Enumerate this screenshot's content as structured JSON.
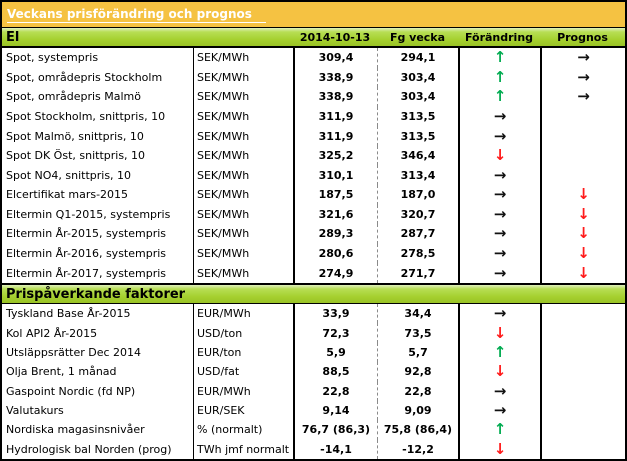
{
  "title": "Veckans prisförändring och prognos",
  "columns": {
    "current": "2014-10-13",
    "previous": "Fg vecka",
    "change": "Förändring",
    "prognosis": "Prognos"
  },
  "icons": {
    "up": "↑",
    "down": "↓",
    "flat": "→"
  },
  "colors": {
    "up": "#00ab50",
    "down": "#ff1a1a",
    "flat": "#111111",
    "title_bg": "#f5c242",
    "section_green": "#a5d02f"
  },
  "sections": [
    {
      "header": "El",
      "rows": [
        {
          "name": "Spot, systempris",
          "unit": "SEK/MWh",
          "current": "309,4",
          "previous": "294,1",
          "change": "up",
          "prognosis": "flat"
        },
        {
          "name": "Spot, områdepris Stockholm",
          "unit": "SEK/MWh",
          "current": "338,9",
          "previous": "303,4",
          "change": "up",
          "prognosis": "flat"
        },
        {
          "name": "Spot, områdepris Malmö",
          "unit": "SEK/MWh",
          "current": "338,9",
          "previous": "303,4",
          "change": "up",
          "prognosis": "flat"
        },
        {
          "name": "Spot Stockholm, snittpris,  10",
          "unit": "SEK/MWh",
          "current": "311,9",
          "previous": "313,5",
          "change": "flat",
          "prognosis": ""
        },
        {
          "name": "Spot Malmö, snittpris,  10",
          "unit": "SEK/MWh",
          "current": "311,9",
          "previous": "313,5",
          "change": "flat",
          "prognosis": ""
        },
        {
          "name": "Spot DK Öst, snittpris,  10",
          "unit": "SEK/MWh",
          "current": "325,2",
          "previous": "346,4",
          "change": "down",
          "prognosis": ""
        },
        {
          "name": "Spot NO4, snittpris,  10",
          "unit": "SEK/MWh",
          "current": "310,1",
          "previous": "313,4",
          "change": "flat",
          "prognosis": ""
        },
        {
          "name": "Elcertifikat mars-2015",
          "unit": "SEK/MWh",
          "current": "187,5",
          "previous": "187,0",
          "change": "flat",
          "prognosis": "down"
        },
        {
          "name": "Eltermin Q1-2015, systempris",
          "unit": "SEK/MWh",
          "current": "321,6",
          "previous": "320,7",
          "change": "flat",
          "prognosis": "down"
        },
        {
          "name": "Eltermin År-2015, systempris",
          "unit": "SEK/MWh",
          "current": "289,3",
          "previous": "287,7",
          "change": "flat",
          "prognosis": "down"
        },
        {
          "name": "Eltermin År-2016, systempris",
          "unit": "SEK/MWh",
          "current": "280,6",
          "previous": "278,5",
          "change": "flat",
          "prognosis": "down"
        },
        {
          "name": "Eltermin År-2017, systempris",
          "unit": "SEK/MWh",
          "current": "274,9",
          "previous": "271,7",
          "change": "flat",
          "prognosis": "down"
        }
      ]
    },
    {
      "header": "Prispåverkande faktorer",
      "rows": [
        {
          "name": "Tyskland Base År-2015",
          "unit": "EUR/MWh",
          "current": "33,9",
          "previous": "34,4",
          "change": "flat",
          "prognosis": ""
        },
        {
          "name": "Kol API2 År-2015",
          "unit": "USD/ton",
          "current": "72,3",
          "previous": "73,5",
          "change": "down",
          "prognosis": ""
        },
        {
          "name": "Utsläppsrätter Dec 2014",
          "unit": "EUR/ton",
          "current": "5,9",
          "previous": "5,7",
          "change": "up",
          "prognosis": ""
        },
        {
          "name": "Olja Brent, 1 månad",
          "unit": "USD/fat",
          "current": "88,5",
          "previous": "92,8",
          "change": "down",
          "prognosis": ""
        },
        {
          "name": "Gaspoint Nordic (fd NP)",
          "unit": "EUR/MWh",
          "current": "22,8",
          "previous": "22,8",
          "change": "flat",
          "prognosis": ""
        },
        {
          "name": "Valutakurs",
          "unit": "EUR/SEK",
          "current": "9,14",
          "previous": "9,09",
          "change": "flat",
          "prognosis": ""
        },
        {
          "name": "Nordiska magasinsnivåer",
          "unit": "%   (normalt)",
          "current": "76,7 (86,3)",
          "previous": "75,8 (86,4)",
          "change": "up",
          "prognosis": ""
        },
        {
          "name": "Hydrologisk bal Norden (prog)",
          "unit": "TWh jmf normalt",
          "current": "-14,1",
          "previous": "-12,2",
          "change": "down",
          "prognosis": ""
        }
      ]
    }
  ]
}
